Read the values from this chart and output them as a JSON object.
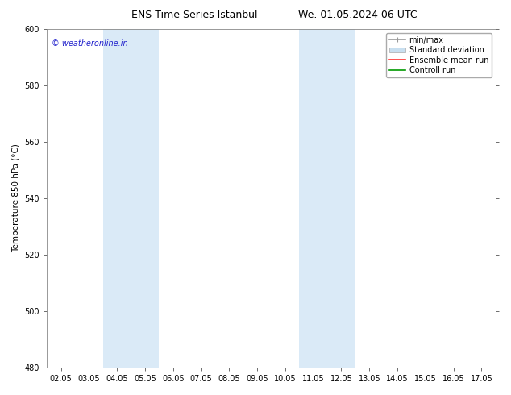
{
  "title_left": "ENS Time Series Istanbul",
  "title_right": "We. 01.05.2024 06 UTC",
  "ylabel": "Temperature 850 hPa (°C)",
  "ylim": [
    480,
    600
  ],
  "yticks": [
    480,
    500,
    520,
    540,
    560,
    580,
    600
  ],
  "x_tick_labels": [
    "02.05",
    "03.05",
    "04.05",
    "05.05",
    "06.05",
    "07.05",
    "08.05",
    "09.05",
    "10.05",
    "11.05",
    "12.05",
    "13.05",
    "14.05",
    "15.05",
    "16.05",
    "17.05"
  ],
  "x_tick_positions": [
    0,
    1,
    2,
    3,
    4,
    5,
    6,
    7,
    8,
    9,
    10,
    11,
    12,
    13,
    14,
    15
  ],
  "xlim": [
    -0.5,
    15.5
  ],
  "shaded_bands": [
    {
      "x_start": 2.0,
      "x_end": 4.0,
      "color": "#daeaf7"
    },
    {
      "x_start": 9.0,
      "x_end": 11.0,
      "color": "#daeaf7"
    }
  ],
  "watermark_text": "© weatheronline.in",
  "watermark_color": "#2222cc",
  "background_color": "#ffffff",
  "legend_labels": [
    "min/max",
    "Standard deviation",
    "Ensemble mean run",
    "Controll run"
  ],
  "legend_colors": [
    "#999999",
    "#c8dff0",
    "#ff3333",
    "#009900"
  ],
  "grid_color": "#dddddd",
  "title_fontsize": 9,
  "tick_fontsize": 7,
  "ylabel_fontsize": 7.5,
  "watermark_fontsize": 7,
  "legend_fontsize": 7
}
